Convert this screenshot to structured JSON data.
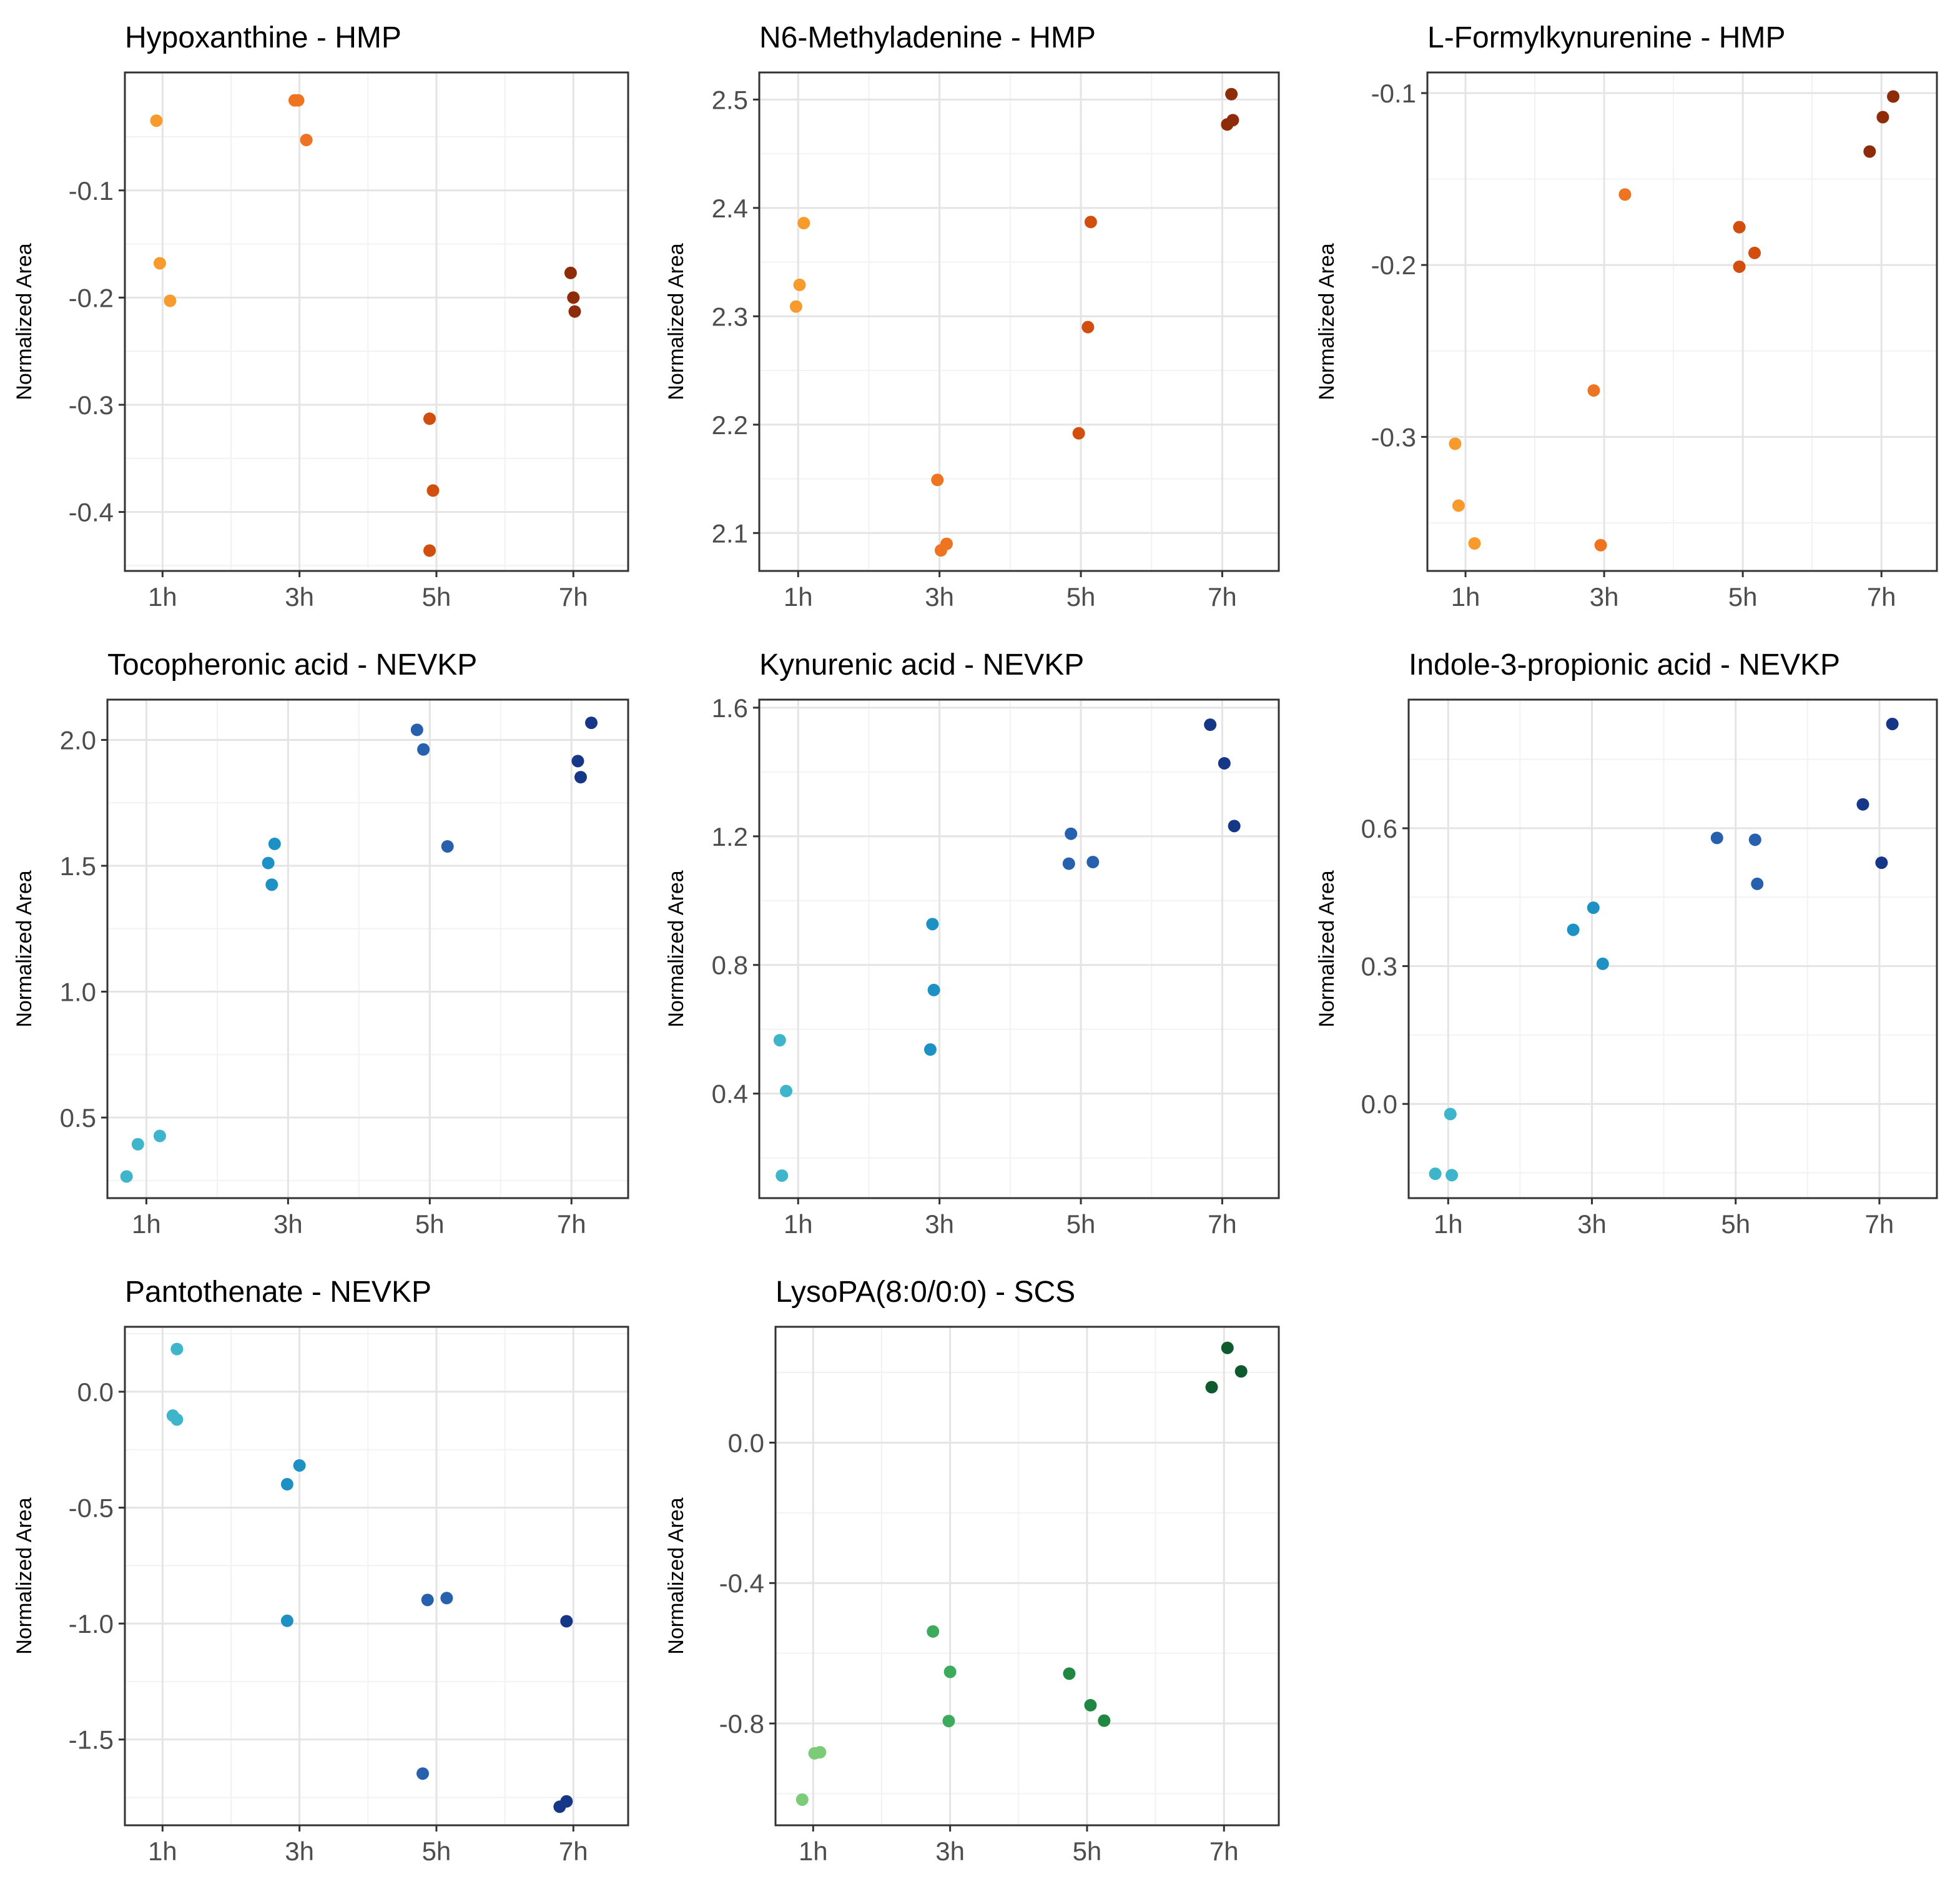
{
  "y_axis_label": "Normalized Area",
  "time_categories": [
    "1h",
    "3h",
    "5h",
    "7h"
  ],
  "palettes": {
    "orange": [
      "#F89A2C",
      "#EE7421",
      "#D24E0E",
      "#8E2C0A"
    ],
    "blue": [
      "#3FB5CB",
      "#1E91C4",
      "#2761AE",
      "#163788"
    ],
    "green": [
      "#7BCB77",
      "#3DAA5C",
      "#1F8741",
      "#0C5A2D"
    ]
  },
  "chart_data": [
    {
      "type": "scatter",
      "title": "Hypoxanthine - HMP",
      "ylabel": "Normalized Area",
      "xlabel": "",
      "categories": [
        "1h",
        "3h",
        "5h",
        "7h"
      ],
      "palette": "orange",
      "ylim": [
        -0.455,
        0.01
      ],
      "yticks": [
        -0.1,
        -0.2,
        -0.3,
        -0.4
      ],
      "ytick_labels": [
        "-0.1",
        "-0.2",
        "-0.3",
        "-0.4"
      ],
      "points": [
        {
          "group": "1h",
          "x": 0.91,
          "y": -0.035
        },
        {
          "group": "1h",
          "x": 0.96,
          "y": -0.168
        },
        {
          "group": "1h",
          "x": 1.11,
          "y": -0.203
        },
        {
          "group": "3h",
          "x": 2.93,
          "y": -0.016
        },
        {
          "group": "3h",
          "x": 2.98,
          "y": -0.016
        },
        {
          "group": "3h",
          "x": 3.1,
          "y": -0.053
        },
        {
          "group": "5h",
          "x": 4.9,
          "y": -0.313
        },
        {
          "group": "5h",
          "x": 4.95,
          "y": -0.38
        },
        {
          "group": "5h",
          "x": 4.9,
          "y": -0.436
        },
        {
          "group": "7h",
          "x": 6.96,
          "y": -0.177
        },
        {
          "group": "7h",
          "x": 7.0,
          "y": -0.2
        },
        {
          "group": "7h",
          "x": 7.02,
          "y": -0.213
        }
      ]
    },
    {
      "type": "scatter",
      "title": "N6-Methyladenine - HMP",
      "ylabel": "Normalized Area",
      "xlabel": "",
      "categories": [
        "1h",
        "3h",
        "5h",
        "7h"
      ],
      "palette": "orange",
      "ylim": [
        2.065,
        2.525
      ],
      "yticks": [
        2.5,
        2.4,
        2.3,
        2.2,
        2.1
      ],
      "ytick_labels": [
        "2.5",
        "2.4",
        "2.3",
        "2.2",
        "2.1"
      ],
      "points": [
        {
          "group": "1h",
          "x": 0.97,
          "y": 2.309
        },
        {
          "group": "1h",
          "x": 1.02,
          "y": 2.329
        },
        {
          "group": "1h",
          "x": 1.08,
          "y": 2.386
        },
        {
          "group": "3h",
          "x": 2.97,
          "y": 2.149
        },
        {
          "group": "3h",
          "x": 3.02,
          "y": 2.084
        },
        {
          "group": "3h",
          "x": 3.1,
          "y": 2.09
        },
        {
          "group": "5h",
          "x": 4.97,
          "y": 2.192
        },
        {
          "group": "5h",
          "x": 5.1,
          "y": 2.29
        },
        {
          "group": "5h",
          "x": 5.14,
          "y": 2.387
        },
        {
          "group": "7h",
          "x": 7.07,
          "y": 2.477
        },
        {
          "group": "7h",
          "x": 7.15,
          "y": 2.481
        },
        {
          "group": "7h",
          "x": 7.13,
          "y": 2.505
        }
      ]
    },
    {
      "type": "scatter",
      "title": "L-Formylkynurenine - HMP",
      "ylabel": "Normalized Area",
      "xlabel": "",
      "categories": [
        "1h",
        "3h",
        "5h",
        "7h"
      ],
      "palette": "orange",
      "ylim": [
        -0.378,
        -0.088
      ],
      "yticks": [
        -0.1,
        -0.2,
        -0.3
      ],
      "ytick_labels": [
        "-0.1",
        "-0.2",
        "-0.3"
      ],
      "points": [
        {
          "group": "1h",
          "x": 0.85,
          "y": -0.304
        },
        {
          "group": "1h",
          "x": 0.9,
          "y": -0.34
        },
        {
          "group": "1h",
          "x": 1.13,
          "y": -0.362
        },
        {
          "group": "3h",
          "x": 2.85,
          "y": -0.273
        },
        {
          "group": "3h",
          "x": 2.95,
          "y": -0.363
        },
        {
          "group": "3h",
          "x": 3.3,
          "y": -0.159
        },
        {
          "group": "5h",
          "x": 4.95,
          "y": -0.178
        },
        {
          "group": "5h",
          "x": 4.95,
          "y": -0.201
        },
        {
          "group": "5h",
          "x": 5.17,
          "y": -0.193
        },
        {
          "group": "7h",
          "x": 6.83,
          "y": -0.134
        },
        {
          "group": "7h",
          "x": 7.02,
          "y": -0.114
        },
        {
          "group": "7h",
          "x": 7.17,
          "y": -0.102
        }
      ]
    },
    {
      "type": "scatter",
      "title": "Tocopheronic acid - NEVKP",
      "ylabel": "Normalized Area",
      "xlabel": "",
      "categories": [
        "1h",
        "3h",
        "5h",
        "7h"
      ],
      "palette": "blue",
      "ylim": [
        0.18,
        2.16
      ],
      "yticks": [
        2.0,
        1.5,
        1.0,
        0.5
      ],
      "ytick_labels": [
        "2.0",
        "1.5",
        "1.0",
        "0.5"
      ],
      "points": [
        {
          "group": "1h",
          "x": 0.72,
          "y": 0.266
        },
        {
          "group": "1h",
          "x": 0.88,
          "y": 0.394
        },
        {
          "group": "1h",
          "x": 1.19,
          "y": 0.427
        },
        {
          "group": "3h",
          "x": 2.72,
          "y": 1.511
        },
        {
          "group": "3h",
          "x": 2.77,
          "y": 1.425
        },
        {
          "group": "3h",
          "x": 2.81,
          "y": 1.587
        },
        {
          "group": "5h",
          "x": 4.82,
          "y": 2.04
        },
        {
          "group": "5h",
          "x": 4.91,
          "y": 1.962
        },
        {
          "group": "5h",
          "x": 5.25,
          "y": 1.577
        },
        {
          "group": "7h",
          "x": 7.09,
          "y": 1.916
        },
        {
          "group": "7h",
          "x": 7.13,
          "y": 1.852
        },
        {
          "group": "7h",
          "x": 7.28,
          "y": 2.068
        }
      ]
    },
    {
      "type": "scatter",
      "title": "Kynurenic acid - NEVKP",
      "ylabel": "Normalized Area",
      "xlabel": "",
      "categories": [
        "1h",
        "3h",
        "5h",
        "7h"
      ],
      "palette": "blue",
      "ylim": [
        0.075,
        1.625
      ],
      "yticks": [
        1.6,
        1.2,
        0.8,
        0.4
      ],
      "ytick_labels": [
        "1.6",
        "1.2",
        "0.8",
        "0.4"
      ],
      "points": [
        {
          "group": "1h",
          "x": 0.74,
          "y": 0.566
        },
        {
          "group": "1h",
          "x": 0.83,
          "y": 0.408
        },
        {
          "group": "1h",
          "x": 0.77,
          "y": 0.145
        },
        {
          "group": "3h",
          "x": 2.9,
          "y": 0.927
        },
        {
          "group": "3h",
          "x": 2.92,
          "y": 0.722
        },
        {
          "group": "3h",
          "x": 2.87,
          "y": 0.537
        },
        {
          "group": "5h",
          "x": 4.86,
          "y": 1.208
        },
        {
          "group": "5h",
          "x": 4.83,
          "y": 1.115
        },
        {
          "group": "5h",
          "x": 5.17,
          "y": 1.12
        },
        {
          "group": "7h",
          "x": 6.83,
          "y": 1.547
        },
        {
          "group": "7h",
          "x": 7.03,
          "y": 1.427
        },
        {
          "group": "7h",
          "x": 7.17,
          "y": 1.232
        }
      ]
    },
    {
      "type": "scatter",
      "title": "Indole-3-propionic acid - NEVKP",
      "ylabel": "Normalized Area",
      "xlabel": "",
      "categories": [
        "1h",
        "3h",
        "5h",
        "7h"
      ],
      "palette": "blue",
      "ylim": [
        -0.205,
        0.88
      ],
      "yticks": [
        0.6,
        0.3,
        0.0
      ],
      "ytick_labels": [
        "0.6",
        "0.3",
        "0.0"
      ],
      "points": [
        {
          "group": "1h",
          "x": 0.82,
          "y": -0.152
        },
        {
          "group": "1h",
          "x": 1.05,
          "y": -0.155
        },
        {
          "group": "1h",
          "x": 1.03,
          "y": -0.022
        },
        {
          "group": "3h",
          "x": 2.74,
          "y": 0.379
        },
        {
          "group": "3h",
          "x": 3.02,
          "y": 0.427
        },
        {
          "group": "3h",
          "x": 3.15,
          "y": 0.305
        },
        {
          "group": "5h",
          "x": 4.74,
          "y": 0.579
        },
        {
          "group": "5h",
          "x": 5.27,
          "y": 0.575
        },
        {
          "group": "5h",
          "x": 5.3,
          "y": 0.479
        },
        {
          "group": "7h",
          "x": 6.77,
          "y": 0.652
        },
        {
          "group": "7h",
          "x": 7.03,
          "y": 0.525
        },
        {
          "group": "7h",
          "x": 7.18,
          "y": 0.827
        }
      ]
    },
    {
      "type": "scatter",
      "title": "Pantothenate - NEVKP",
      "ylabel": "Normalized Area",
      "xlabel": "",
      "categories": [
        "1h",
        "3h",
        "5h",
        "7h"
      ],
      "palette": "blue",
      "ylim": [
        -1.87,
        0.28
      ],
      "yticks": [
        0.0,
        -0.5,
        -1.0,
        -1.5
      ],
      "ytick_labels": [
        "0.0",
        "-0.5",
        "-1.0",
        "-1.5"
      ],
      "points": [
        {
          "group": "1h",
          "x": 1.21,
          "y": 0.184
        },
        {
          "group": "1h",
          "x": 1.15,
          "y": -0.103
        },
        {
          "group": "1h",
          "x": 1.21,
          "y": -0.12
        },
        {
          "group": "3h",
          "x": 2.82,
          "y": -0.399
        },
        {
          "group": "3h",
          "x": 3.0,
          "y": -0.318
        },
        {
          "group": "3h",
          "x": 2.82,
          "y": -0.988
        },
        {
          "group": "5h",
          "x": 4.87,
          "y": -0.898
        },
        {
          "group": "5h",
          "x": 5.15,
          "y": -0.89
        },
        {
          "group": "5h",
          "x": 4.8,
          "y": -1.647
        },
        {
          "group": "7h",
          "x": 6.9,
          "y": -0.99
        },
        {
          "group": "7h",
          "x": 6.8,
          "y": -1.79
        },
        {
          "group": "7h",
          "x": 6.9,
          "y": -1.767
        }
      ]
    },
    {
      "type": "scatter",
      "title": "LysoPA(8:0/0:0) - SCS",
      "ylabel": "Normalized Area",
      "xlabel": "",
      "categories": [
        "1h",
        "3h",
        "5h",
        "7h"
      ],
      "palette": "green",
      "ylim": [
        -1.09,
        0.33
      ],
      "yticks": [
        0.0,
        -0.4,
        -0.8
      ],
      "ytick_labels": [
        "0.0",
        "-0.4",
        "-0.8"
      ],
      "points": [
        {
          "group": "1h",
          "x": 0.84,
          "y": -1.017
        },
        {
          "group": "1h",
          "x": 1.02,
          "y": -0.885
        },
        {
          "group": "1h",
          "x": 1.1,
          "y": -0.882
        },
        {
          "group": "3h",
          "x": 2.75,
          "y": -0.538
        },
        {
          "group": "3h",
          "x": 3.0,
          "y": -0.653
        },
        {
          "group": "3h",
          "x": 2.98,
          "y": -0.793
        },
        {
          "group": "5h",
          "x": 4.74,
          "y": -0.658
        },
        {
          "group": "5h",
          "x": 5.05,
          "y": -0.748
        },
        {
          "group": "5h",
          "x": 5.25,
          "y": -0.792
        },
        {
          "group": "7h",
          "x": 6.82,
          "y": 0.158
        },
        {
          "group": "7h",
          "x": 7.05,
          "y": 0.27
        },
        {
          "group": "7h",
          "x": 7.25,
          "y": 0.203
        }
      ]
    }
  ]
}
